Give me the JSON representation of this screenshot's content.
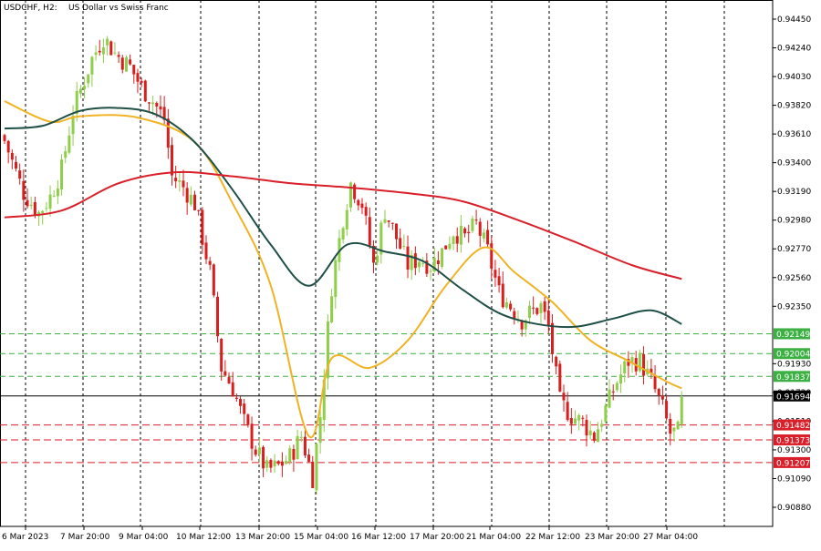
{
  "window": {
    "symbol": "USDCHF, H2:",
    "description": "US Dollar vs Swiss Franc"
  },
  "colors": {
    "background": "#ffffff",
    "grid": "#000000",
    "bull_candle": "#8fce4a",
    "bear_candle": "#d91e1e",
    "ma_fast": "#f0b323",
    "ma_mid": "#1f4f46",
    "ma_slow": "#d81f2a",
    "support": "#d81f2a",
    "resistance": "#3cb043",
    "current_price": "#000000",
    "axis_text": "#000000"
  },
  "chart_data": {
    "type": "candlestick",
    "title": "USDCHF, H2: US Dollar vs Swiss Franc",
    "ylim": [
      0.9078,
      0.9447
    ],
    "y_ticks": [
      "0.94450",
      "0.94240",
      "0.94030",
      "0.93820",
      "0.93610",
      "0.93400",
      "0.93190",
      "0.92980",
      "0.92770",
      "0.92560",
      "0.92350",
      "0.91930",
      "0.91720",
      "0.91510",
      "0.91300",
      "0.91090",
      "0.90880"
    ],
    "x_tick_labels": [
      "6 Mar 2023",
      "7 Mar 20:00",
      "9 Mar 04:00",
      "10 Mar 12:00",
      "13 Mar 20:00",
      "15 Mar 04:00",
      "16 Mar 12:00",
      "17 Mar 20:00",
      "21 Mar 04:00",
      "22 Mar 12:00",
      "23 Mar 20:00",
      "27 Mar 04:00"
    ],
    "grid": true,
    "current_price": {
      "label": "0.91694",
      "value": 0.91694
    },
    "horizontal_levels": [
      {
        "label": "0.92149",
        "value": 0.92149,
        "kind": "resistance"
      },
      {
        "label": "0.92004",
        "value": 0.92004,
        "kind": "resistance"
      },
      {
        "label": "0.91837",
        "value": 0.91837,
        "kind": "resistance"
      },
      {
        "label": "0.91482",
        "value": 0.91482,
        "kind": "support"
      },
      {
        "label": "0.91373",
        "value": 0.91373,
        "kind": "support"
      },
      {
        "label": "0.91207",
        "value": 0.91207,
        "kind": "support"
      }
    ],
    "ohlc_anchors": [
      [
        0,
        0.9356
      ],
      [
        5,
        0.9318
      ],
      [
        9,
        0.9303
      ],
      [
        12,
        0.9315
      ],
      [
        15,
        0.9335
      ],
      [
        18,
        0.9378
      ],
      [
        23,
        0.9416
      ],
      [
        26,
        0.9432
      ],
      [
        29,
        0.942
      ],
      [
        33,
        0.941
      ],
      [
        36,
        0.9395
      ],
      [
        39,
        0.9385
      ],
      [
        42,
        0.9372
      ],
      [
        44,
        0.933
      ],
      [
        47,
        0.9322
      ],
      [
        50,
        0.931
      ],
      [
        54,
        0.926
      ],
      [
        57,
        0.919
      ],
      [
        60,
        0.9175
      ],
      [
        63,
        0.915
      ],
      [
        66,
        0.913
      ],
      [
        69,
        0.9115
      ],
      [
        72,
        0.9118
      ],
      [
        75,
        0.9125
      ],
      [
        78,
        0.914
      ],
      [
        81,
        0.911
      ],
      [
        83,
        0.9155
      ],
      [
        86,
        0.925
      ],
      [
        89,
        0.93
      ],
      [
        91,
        0.9325
      ],
      [
        94,
        0.931
      ],
      [
        97,
        0.9265
      ],
      [
        100,
        0.9305
      ],
      [
        103,
        0.9285
      ],
      [
        106,
        0.9265
      ],
      [
        109,
        0.927
      ],
      [
        112,
        0.9265
      ],
      [
        115,
        0.9275
      ],
      [
        118,
        0.929
      ],
      [
        121,
        0.9285
      ],
      [
        124,
        0.9295
      ],
      [
        127,
        0.9275
      ],
      [
        130,
        0.9245
      ],
      [
        133,
        0.9235
      ],
      [
        136,
        0.9225
      ],
      [
        138,
        0.923
      ],
      [
        141,
        0.9235
      ],
      [
        143,
        0.922
      ],
      [
        146,
        0.9165
      ],
      [
        149,
        0.9155
      ],
      [
        152,
        0.915
      ],
      [
        155,
        0.914
      ],
      [
        158,
        0.916
      ],
      [
        161,
        0.918
      ],
      [
        164,
        0.9195
      ],
      [
        167,
        0.9195
      ],
      [
        170,
        0.918
      ],
      [
        173,
        0.916
      ],
      [
        175,
        0.9142
      ],
      [
        177,
        0.9143
      ],
      [
        178,
        0.9164
      ]
    ],
    "moving_averages": [
      {
        "color_key": "ma_fast",
        "values": [
          [
            0,
            0.9385
          ],
          [
            12,
            0.937
          ],
          [
            20,
            0.9374
          ],
          [
            35,
            0.9373
          ],
          [
            50,
            0.9355
          ],
          [
            60,
            0.931
          ],
          [
            70,
            0.925
          ],
          [
            80,
            0.914
          ],
          [
            86,
            0.9197
          ],
          [
            96,
            0.919
          ],
          [
            106,
            0.921
          ],
          [
            116,
            0.925
          ],
          [
            126,
            0.9278
          ],
          [
            134,
            0.926
          ],
          [
            144,
            0.9238
          ],
          [
            154,
            0.921
          ],
          [
            164,
            0.9195
          ],
          [
            174,
            0.918
          ],
          [
            178,
            0.9175
          ]
        ]
      },
      {
        "color_key": "ma_mid",
        "values": [
          [
            0,
            0.9365
          ],
          [
            10,
            0.9367
          ],
          [
            20,
            0.9378
          ],
          [
            30,
            0.938
          ],
          [
            40,
            0.9375
          ],
          [
            50,
            0.9355
          ],
          [
            60,
            0.932
          ],
          [
            70,
            0.928
          ],
          [
            80,
            0.925
          ],
          [
            90,
            0.928
          ],
          [
            100,
            0.9275
          ],
          [
            110,
            0.9268
          ],
          [
            120,
            0.9248
          ],
          [
            130,
            0.923
          ],
          [
            140,
            0.9222
          ],
          [
            150,
            0.922
          ],
          [
            160,
            0.9226
          ],
          [
            170,
            0.9232
          ],
          [
            178,
            0.9222
          ]
        ]
      },
      {
        "color_key": "ma_slow",
        "values": [
          [
            0,
            0.93
          ],
          [
            15,
            0.9305
          ],
          [
            30,
            0.9325
          ],
          [
            45,
            0.9333
          ],
          [
            60,
            0.933
          ],
          [
            75,
            0.9325
          ],
          [
            90,
            0.9322
          ],
          [
            105,
            0.9318
          ],
          [
            120,
            0.9312
          ],
          [
            135,
            0.9298
          ],
          [
            150,
            0.9282
          ],
          [
            165,
            0.9265
          ],
          [
            178,
            0.9255
          ]
        ]
      }
    ]
  }
}
